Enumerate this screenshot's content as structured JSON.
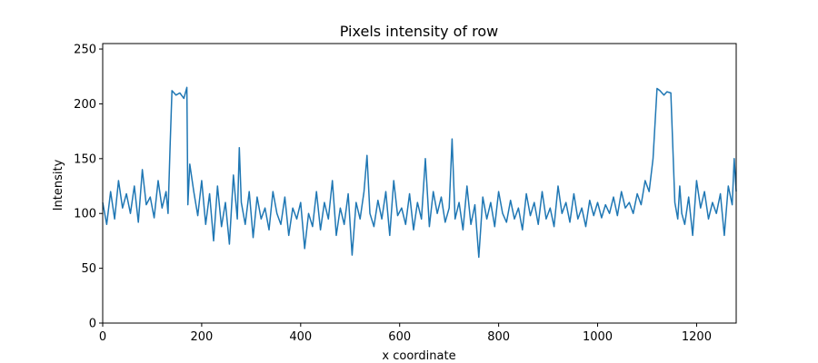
{
  "chart_data": {
    "type": "line",
    "title": "Pixels intensity of row",
    "xlabel": "x coordinate",
    "ylabel": "Intensity",
    "xlim": [
      0,
      1280
    ],
    "ylim": [
      0,
      255
    ],
    "xticks": [
      0,
      200,
      400,
      600,
      800,
      1000,
      1200
    ],
    "yticks": [
      0,
      50,
      100,
      150,
      200,
      250
    ],
    "grid": false,
    "line_color": "#1f77b4",
    "series": [
      {
        "x": [
          0,
          8,
          16,
          24,
          32,
          40,
          48,
          56,
          64,
          72,
          80,
          88,
          96,
          104,
          112,
          120,
          128,
          132,
          136,
          140,
          148,
          156,
          164,
          170,
          172,
          176,
          184,
          192,
          200,
          208,
          216,
          224,
          232,
          240,
          248,
          256,
          264,
          272,
          276,
          280,
          288,
          296,
          304,
          312,
          320,
          328,
          336,
          344,
          352,
          360,
          368,
          376,
          384,
          392,
          400,
          408,
          416,
          424,
          432,
          440,
          448,
          456,
          464,
          472,
          480,
          488,
          496,
          504,
          512,
          520,
          528,
          534,
          540,
          548,
          556,
          564,
          572,
          580,
          588,
          596,
          604,
          612,
          620,
          628,
          636,
          644,
          652,
          660,
          668,
          676,
          684,
          692,
          700,
          706,
          712,
          720,
          728,
          736,
          744,
          752,
          760,
          768,
          776,
          784,
          792,
          800,
          808,
          816,
          824,
          832,
          840,
          848,
          856,
          864,
          872,
          880,
          888,
          896,
          904,
          912,
          920,
          928,
          936,
          944,
          952,
          960,
          968,
          976,
          984,
          992,
          1000,
          1008,
          1016,
          1024,
          1032,
          1040,
          1048,
          1056,
          1064,
          1072,
          1080,
          1088,
          1096,
          1104,
          1112,
          1120,
          1126,
          1130,
          1134,
          1140,
          1148,
          1156,
          1162,
          1166,
          1170,
          1176,
          1184,
          1192,
          1200,
          1208,
          1216,
          1224,
          1232,
          1240,
          1248,
          1256,
          1264,
          1272,
          1276,
          1280
        ],
        "y": [
          110,
          90,
          120,
          95,
          130,
          105,
          118,
          100,
          125,
          92,
          140,
          108,
          115,
          96,
          130,
          105,
          120,
          100,
          160,
          212,
          208,
          210,
          205,
          215,
          108,
          145,
          120,
          98,
          130,
          90,
          118,
          75,
          125,
          88,
          110,
          72,
          135,
          95,
          160,
          110,
          90,
          120,
          78,
          115,
          95,
          105,
          85,
          120,
          100,
          90,
          115,
          80,
          105,
          95,
          110,
          68,
          100,
          88,
          120,
          85,
          110,
          95,
          130,
          80,
          105,
          90,
          118,
          62,
          110,
          95,
          120,
          153,
          100,
          88,
          112,
          95,
          120,
          80,
          130,
          98,
          105,
          90,
          118,
          85,
          110,
          95,
          150,
          88,
          120,
          100,
          115,
          92,
          105,
          168,
          95,
          110,
          85,
          125,
          90,
          108,
          60,
          115,
          95,
          110,
          88,
          120,
          100,
          92,
          112,
          95,
          105,
          85,
          118,
          98,
          110,
          90,
          120,
          95,
          105,
          88,
          125,
          100,
          110,
          92,
          118,
          95,
          105,
          88,
          112,
          98,
          110,
          96,
          108,
          100,
          115,
          98,
          120,
          105,
          110,
          100,
          118,
          108,
          130,
          120,
          150,
          214,
          212,
          210,
          208,
          211,
          210,
          110,
          95,
          125,
          100,
          90,
          115,
          80,
          130,
          105,
          120,
          95,
          110,
          100,
          118,
          80,
          125,
          108,
          150,
          120
        ]
      }
    ]
  }
}
